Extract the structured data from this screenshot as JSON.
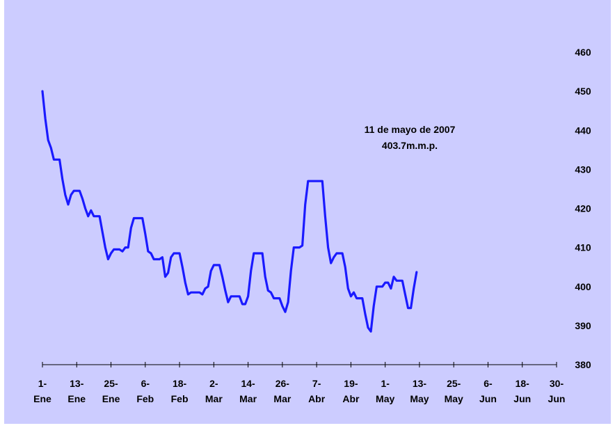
{
  "chart_data": {
    "type": "line",
    "title": "",
    "xlabel": "",
    "ylabel": "",
    "ylim": [
      380,
      460
    ],
    "y_ticks": [
      380,
      390,
      400,
      410,
      420,
      430,
      440,
      450,
      460
    ],
    "y_axis_position": "right",
    "grid": false,
    "legend": "none",
    "colors": {
      "background": "#ccccff",
      "line": "#1a1aff",
      "axis": "#000000"
    },
    "x_ticks": [
      {
        "day": 1,
        "label": [
          "1-",
          "Ene"
        ]
      },
      {
        "day": 13,
        "label": [
          "13-",
          "Ene"
        ]
      },
      {
        "day": 25,
        "label": [
          "25-",
          "Ene"
        ]
      },
      {
        "day": 37,
        "label": [
          "6-",
          "Feb"
        ]
      },
      {
        "day": 49,
        "label": [
          "18-",
          "Feb"
        ]
      },
      {
        "day": 61,
        "label": [
          "2-",
          "Mar"
        ]
      },
      {
        "day": 73,
        "label": [
          "14-",
          "Mar"
        ]
      },
      {
        "day": 85,
        "label": [
          "26-",
          "Mar"
        ]
      },
      {
        "day": 97,
        "label": [
          "7-",
          "Abr"
        ]
      },
      {
        "day": 109,
        "label": [
          "19-",
          "Abr"
        ]
      },
      {
        "day": 121,
        "label": [
          "1-",
          "May"
        ]
      },
      {
        "day": 133,
        "label": [
          "13-",
          "May"
        ]
      },
      {
        "day": 145,
        "label": [
          "25-",
          "May"
        ]
      },
      {
        "day": 157,
        "label": [
          "6-",
          "Jun"
        ]
      },
      {
        "day": 169,
        "label": [
          "18-",
          "Jun"
        ]
      },
      {
        "day": 181,
        "label": [
          "30-",
          "Jun"
        ]
      }
    ],
    "x_range": [
      1,
      181
    ],
    "series": [
      {
        "values": [
          [
            1,
            450
          ],
          [
            2,
            443
          ],
          [
            3,
            437.5
          ],
          [
            4,
            435.5
          ],
          [
            5,
            432.5
          ],
          [
            6,
            432.5
          ],
          [
            7,
            432.5
          ],
          [
            8,
            427.5
          ],
          [
            9,
            423.5
          ],
          [
            10,
            421
          ],
          [
            11,
            423.5
          ],
          [
            12,
            424.5
          ],
          [
            13,
            424.5
          ],
          [
            14,
            424.5
          ],
          [
            15,
            422.5
          ],
          [
            16,
            420
          ],
          [
            17,
            418
          ],
          [
            18,
            419.5
          ],
          [
            19,
            418
          ],
          [
            20,
            418
          ],
          [
            21,
            418
          ],
          [
            22,
            414
          ],
          [
            23,
            410
          ],
          [
            24,
            407
          ],
          [
            25,
            408.5
          ],
          [
            26,
            409.5
          ],
          [
            27,
            409.5
          ],
          [
            28,
            409.5
          ],
          [
            29,
            409
          ],
          [
            30,
            410
          ],
          [
            31,
            410
          ],
          [
            32,
            415
          ],
          [
            33,
            417.5
          ],
          [
            34,
            417.5
          ],
          [
            35,
            417.5
          ],
          [
            36,
            417.5
          ],
          [
            37,
            413.5
          ],
          [
            38,
            409
          ],
          [
            39,
            408.5
          ],
          [
            40,
            407
          ],
          [
            41,
            407
          ],
          [
            42,
            407
          ],
          [
            43,
            407.5
          ],
          [
            44,
            402.5
          ],
          [
            45,
            403.5
          ],
          [
            46,
            407.5
          ],
          [
            47,
            408.5
          ],
          [
            48,
            408.5
          ],
          [
            49,
            408.5
          ],
          [
            50,
            405
          ],
          [
            51,
            401
          ],
          [
            52,
            398
          ],
          [
            53,
            398.5
          ],
          [
            54,
            398.5
          ],
          [
            55,
            398.5
          ],
          [
            56,
            398.5
          ],
          [
            57,
            398
          ],
          [
            58,
            399.5
          ],
          [
            59,
            400
          ],
          [
            60,
            404
          ],
          [
            61,
            405.5
          ],
          [
            62,
            405.5
          ],
          [
            63,
            405.5
          ],
          [
            64,
            402.5
          ],
          [
            65,
            399
          ],
          [
            66,
            396
          ],
          [
            67,
            397.5
          ],
          [
            68,
            397.5
          ],
          [
            69,
            397.5
          ],
          [
            70,
            397.5
          ],
          [
            71,
            395.5
          ],
          [
            72,
            395.5
          ],
          [
            73,
            397.5
          ],
          [
            74,
            404
          ],
          [
            75,
            408.5
          ],
          [
            76,
            408.5
          ],
          [
            77,
            408.5
          ],
          [
            78,
            408.5
          ],
          [
            79,
            402.5
          ],
          [
            80,
            399
          ],
          [
            81,
            398.5
          ],
          [
            82,
            397
          ],
          [
            83,
            397
          ],
          [
            84,
            397
          ],
          [
            85,
            395
          ],
          [
            86,
            393.5
          ],
          [
            87,
            396
          ],
          [
            88,
            404
          ],
          [
            89,
            410
          ],
          [
            90,
            410
          ],
          [
            91,
            410
          ],
          [
            92,
            410.5
          ],
          [
            93,
            421
          ],
          [
            94,
            427
          ],
          [
            95,
            427
          ],
          [
            96,
            427
          ],
          [
            97,
            427
          ],
          [
            98,
            427
          ],
          [
            99,
            427
          ],
          [
            100,
            418
          ],
          [
            101,
            410
          ],
          [
            102,
            406
          ],
          [
            103,
            407.5
          ],
          [
            104,
            408.5
          ],
          [
            105,
            408.5
          ],
          [
            106,
            408.5
          ],
          [
            107,
            405
          ],
          [
            108,
            399.5
          ],
          [
            109,
            397.5
          ],
          [
            110,
            398.5
          ],
          [
            111,
            397
          ],
          [
            112,
            397
          ],
          [
            113,
            397
          ],
          [
            114,
            393
          ],
          [
            115,
            389.5
          ],
          [
            116,
            388.5
          ],
          [
            117,
            395
          ],
          [
            118,
            400
          ],
          [
            119,
            400
          ],
          [
            120,
            400
          ],
          [
            121,
            401
          ],
          [
            122,
            401
          ],
          [
            123,
            399.5
          ],
          [
            124,
            402.5
          ],
          [
            125,
            401.5
          ],
          [
            126,
            401.5
          ],
          [
            127,
            401.5
          ],
          [
            128,
            398
          ],
          [
            129,
            394.5
          ],
          [
            130,
            394.5
          ],
          [
            131,
            399.5
          ],
          [
            132,
            403.7
          ]
        ]
      }
    ],
    "annotation": [
      "11 de mayo de 2007",
      "403.7m.m.p."
    ]
  }
}
